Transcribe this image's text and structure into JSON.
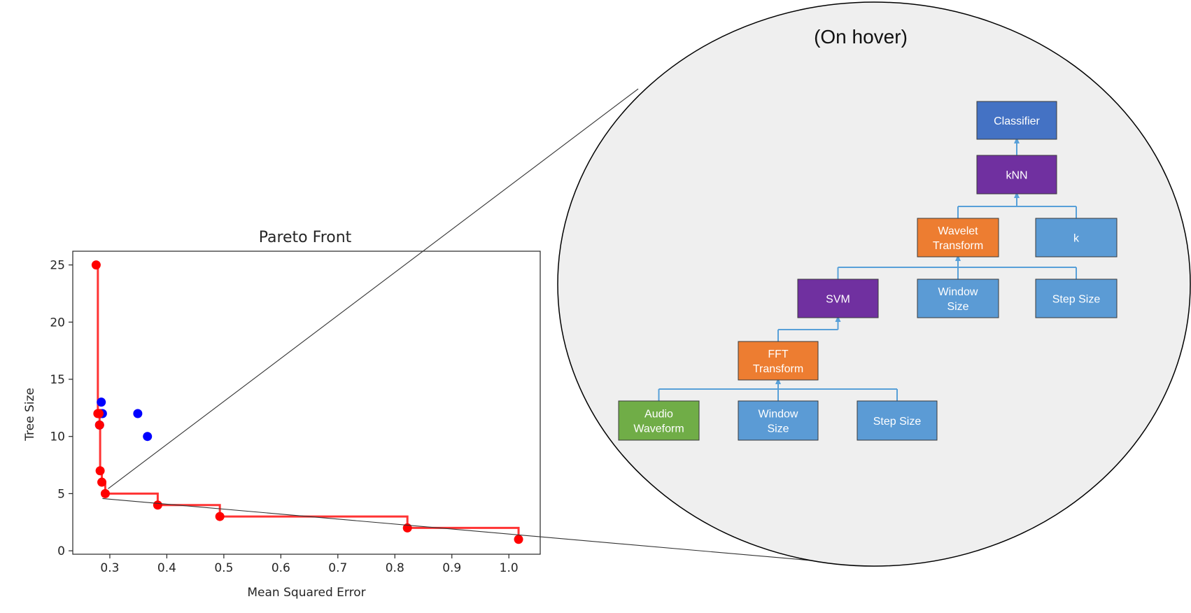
{
  "chart_data": {
    "type": "scatter",
    "title": "Pareto Front",
    "xlabel": "Mean Squared Error",
    "ylabel": "Tree Size",
    "xlim": [
      0.235,
      1.055
    ],
    "ylim": [
      -0.3,
      26.2
    ],
    "xticks": [
      {
        "value": 0.3,
        "label": "0.3"
      },
      {
        "value": 0.4,
        "label": "0.4"
      },
      {
        "value": 0.5,
        "label": "0.5"
      },
      {
        "value": 0.6,
        "label": "0.6"
      },
      {
        "value": 0.7,
        "label": "0.7"
      },
      {
        "value": 0.8,
        "label": "0.8"
      },
      {
        "value": 0.9,
        "label": "0.9"
      },
      {
        "value": 1.0,
        "label": "1.0"
      }
    ],
    "yticks": [
      {
        "value": 0,
        "label": "0"
      },
      {
        "value": 5,
        "label": "5"
      },
      {
        "value": 10,
        "label": "10"
      },
      {
        "value": 15,
        "label": "15"
      },
      {
        "value": 20,
        "label": "20"
      },
      {
        "value": 25,
        "label": "25"
      }
    ],
    "grid": false,
    "legend": "none",
    "series": [
      {
        "color": "#0000ff",
        "x": [
          0.285,
          0.287,
          0.283,
          0.282,
          0.349,
          0.366
        ],
        "y": [
          13,
          12,
          12,
          11,
          12,
          10
        ]
      },
      {
        "color": "#ff0000",
        "x": [
          0.276,
          0.279,
          0.281,
          0.282,
          0.283,
          0.286,
          0.292,
          0.384,
          0.493,
          0.822,
          1.017
        ],
        "y": [
          25,
          12,
          12,
          11,
          7,
          6,
          5,
          4,
          3,
          2,
          1
        ]
      }
    ],
    "front_line": {
      "color": "#ff3333",
      "x": [
        0.276,
        0.279,
        0.281,
        0.282,
        0.283,
        0.286,
        0.292,
        0.384,
        0.493,
        0.822,
        1.017
      ],
      "y": [
        25,
        12,
        12,
        11,
        7,
        6,
        5,
        4,
        3,
        2,
        1
      ]
    },
    "highlight_point": {
      "x": 0.292,
      "y": 5
    }
  },
  "hover_panel": {
    "caption": "(On hover)",
    "background": "#efefef",
    "connector_color": "#58a0d8",
    "nodes": [
      {
        "id": "classifier",
        "lines": [
          "Classifier"
        ],
        "color": "#4472c4"
      },
      {
        "id": "knn",
        "lines": [
          "kNN"
        ],
        "color": "#7030a0"
      },
      {
        "id": "wavelet",
        "lines": [
          "Wavelet",
          "Transform"
        ],
        "color": "#ed7d31"
      },
      {
        "id": "k",
        "lines": [
          "k"
        ],
        "color": "#5b9bd5"
      },
      {
        "id": "svm",
        "lines": [
          "SVM"
        ],
        "color": "#7030a0"
      },
      {
        "id": "window-size-1",
        "lines": [
          "Window",
          "Size"
        ],
        "color": "#5b9bd5"
      },
      {
        "id": "step-size-1",
        "lines": [
          "Step Size"
        ],
        "color": "#5b9bd5"
      },
      {
        "id": "fft",
        "lines": [
          "FFT",
          "Transform"
        ],
        "color": "#ed7d31"
      },
      {
        "id": "audio",
        "lines": [
          "Audio",
          "Waveform"
        ],
        "color": "#70ad47"
      },
      {
        "id": "window-size-2",
        "lines": [
          "Window",
          "Size"
        ],
        "color": "#5b9bd5"
      },
      {
        "id": "step-size-2",
        "lines": [
          "Step Size"
        ],
        "color": "#5b9bd5"
      }
    ],
    "edges": [
      {
        "parent": "classifier",
        "children": [
          "knn"
        ]
      },
      {
        "parent": "knn",
        "children": [
          "wavelet",
          "k"
        ]
      },
      {
        "parent": "wavelet",
        "children": [
          "svm",
          "window-size-1",
          "step-size-1"
        ]
      },
      {
        "parent": "svm",
        "children": [
          "fft"
        ]
      },
      {
        "parent": "fft",
        "children": [
          "audio",
          "window-size-2",
          "step-size-2"
        ]
      }
    ]
  }
}
